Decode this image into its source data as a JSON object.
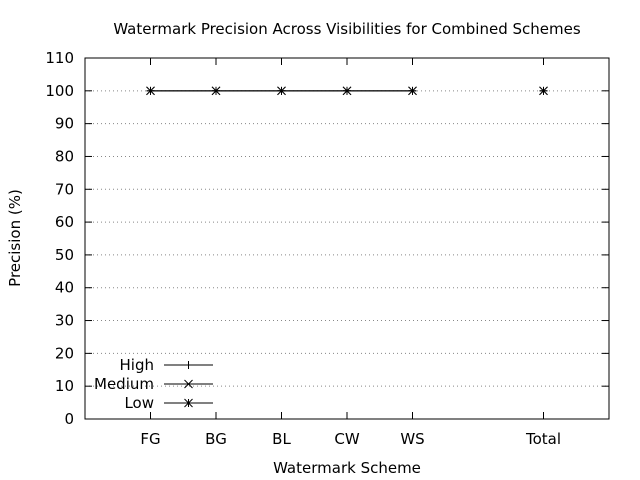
{
  "chart_data": {
    "type": "line",
    "title": "Watermark Precision Across Visibilities for Combined Schemes",
    "xlabel": "Watermark Scheme",
    "ylabel": "Precision (%)",
    "categories": [
      "FG",
      "BG",
      "BL",
      "CW",
      "WS",
      "Total"
    ],
    "category_slots": [
      1,
      2,
      3,
      4,
      5,
      7
    ],
    "x_slot_range": [
      0,
      8
    ],
    "ylim": [
      0,
      110
    ],
    "yticks": [
      0,
      10,
      20,
      30,
      40,
      50,
      60,
      70,
      80,
      90,
      100,
      110
    ],
    "grid": "y-dotted",
    "legend_placement": "bottom-left",
    "series": [
      {
        "name": "High",
        "marker": "plus",
        "line_until_category": "WS",
        "values": [
          100,
          100,
          100,
          100,
          100,
          100
        ]
      },
      {
        "name": "Medium",
        "marker": "cross",
        "line_until_category": "WS",
        "values": [
          100,
          100,
          100,
          100,
          100,
          100
        ]
      },
      {
        "name": "Low",
        "marker": "star",
        "line_until_category": "WS",
        "values": [
          100,
          100,
          100,
          100,
          100,
          100
        ]
      }
    ]
  }
}
